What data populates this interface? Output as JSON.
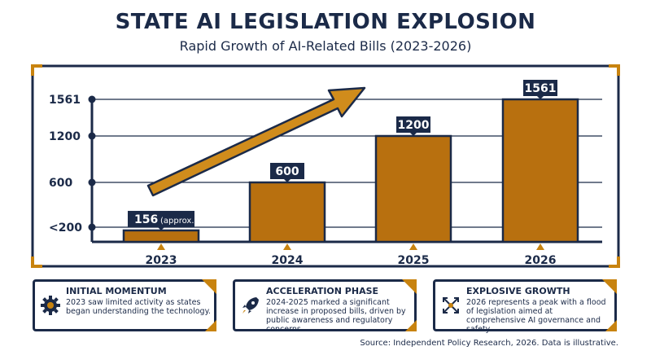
{
  "header": {
    "title": "STATE AI LEGISLATION EXPLOSION",
    "subtitle": "Rapid Growth of AI-Related Bills (2023-2026)"
  },
  "chart_data": {
    "type": "bar",
    "categories": [
      "2023",
      "2024",
      "2025",
      "2026"
    ],
    "values": [
      156,
      600,
      1200,
      1561
    ],
    "data_labels": [
      "156",
      "600",
      "1200",
      "1561"
    ],
    "data_label_notes": [
      "(approx.)",
      "",
      "",
      ""
    ],
    "yticks": [
      {
        "value": 200,
        "label": "<200"
      },
      {
        "value": 600,
        "label": "600"
      },
      {
        "value": 1200,
        "label": "1200"
      },
      {
        "value": 1561,
        "label": "1561"
      }
    ],
    "title": "",
    "xlabel": "",
    "ylabel": "",
    "grid": true,
    "colors": {
      "bar": "#b8700f",
      "bar_edge": "#1b2a48",
      "arrow": "#d08c1c",
      "accent": "#c8830f",
      "navy": "#1b2a48"
    }
  },
  "cards": [
    {
      "title": "INITIAL MOMENTUM",
      "text": "2023 saw limited activity as states began understanding the technology.",
      "icon": "gear-icon"
    },
    {
      "title": "ACCELERATION PHASE",
      "text": "2024-2025 marked a significant increase in proposed bills, driven by public awareness and regulatory concerns.",
      "icon": "rocket-icon"
    },
    {
      "title": "EXPLOSIVE GROWTH",
      "text": "2026 represents a peak with a flood of legislation aimed at comprehensive AI governance and safety.",
      "icon": "expand-arrows-icon"
    }
  ],
  "footer": {
    "source": "Source: Independent Policy Research, 2026. Data is illustrative."
  }
}
